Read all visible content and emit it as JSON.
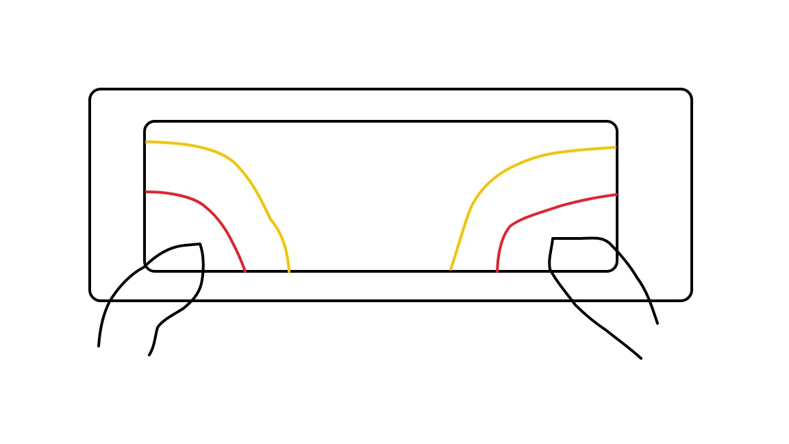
{
  "diagram": {
    "description_text": "",
    "colors": {
      "outline": "#000000",
      "outer_arc": "#f5c400",
      "inner_arc": "#e8202a",
      "background": "#ffffff"
    },
    "elements": [
      "device-outer-frame",
      "device-screen",
      "left-outer-arc",
      "left-inner-arc",
      "right-outer-arc",
      "right-inner-arc",
      "left-thumb",
      "right-thumb"
    ]
  }
}
